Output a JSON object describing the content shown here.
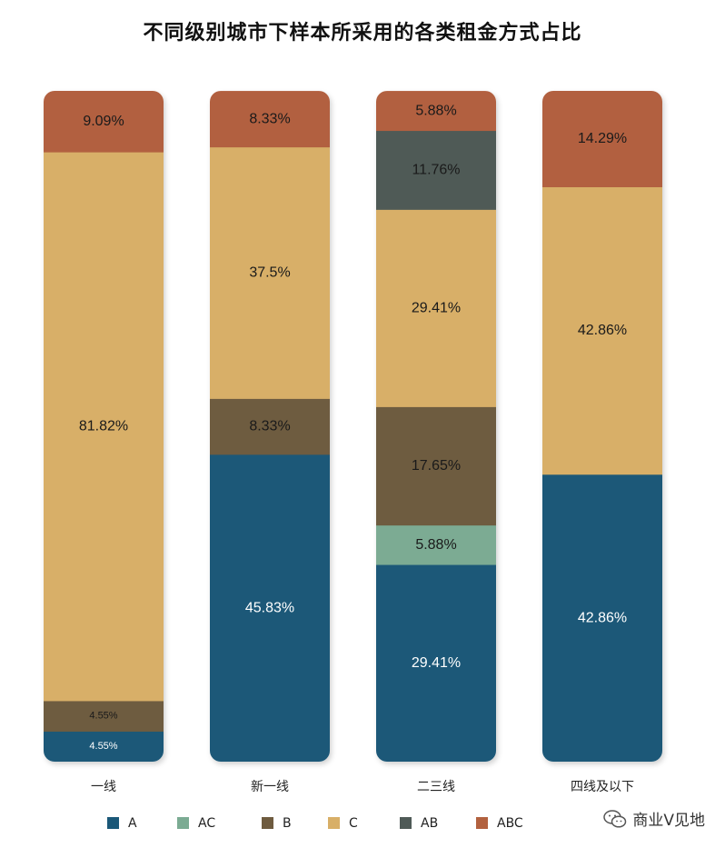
{
  "chart_data": {
    "type": "bar",
    "stacked": true,
    "percent": true,
    "title": "不同级别城市下样本所采用的各类租金方式占比",
    "categories": [
      "一线",
      "新一线",
      "二三线",
      "四线及以下"
    ],
    "series": [
      {
        "name": "A",
        "color": "#1b5878",
        "text_color": "#ffffff",
        "values": [
          4.55,
          45.83,
          29.41,
          42.86
        ],
        "labels": [
          "4.55%",
          "45.83%",
          "29.41%",
          "42.86%"
        ]
      },
      {
        "name": "AC",
        "color": "#7bab93",
        "text_color": "#1a1a1a",
        "values": [
          0,
          0,
          5.88,
          0
        ],
        "labels": [
          "",
          "",
          "5.88%",
          ""
        ]
      },
      {
        "name": "B",
        "color": "#6e5b3f",
        "text_color": "#1a1a1a",
        "values": [
          4.55,
          8.33,
          17.65,
          0
        ],
        "labels": [
          "4.55%",
          "8.33%",
          "17.65%",
          ""
        ]
      },
      {
        "name": "C",
        "color": "#d8af67",
        "text_color": "#1a1a1a",
        "values": [
          81.82,
          37.5,
          29.41,
          42.86
        ],
        "labels": [
          "81.82%",
          "37.5%",
          "29.41%",
          "42.86%"
        ]
      },
      {
        "name": "AB",
        "color": "#4f5a57",
        "text_color": "#1a1a1a",
        "values": [
          0,
          0,
          11.76,
          0
        ],
        "labels": [
          "",
          "",
          "11.76%",
          ""
        ]
      },
      {
        "name": "ABC",
        "color": "#b2613f",
        "text_color": "#1a1a1a",
        "values": [
          9.09,
          8.33,
          5.88,
          14.29
        ],
        "labels": [
          "9.09%",
          "8.33%",
          "5.88%",
          "14.29%"
        ]
      }
    ],
    "ylim": [
      0,
      100
    ],
    "legend_position": "bottom",
    "grid": false
  },
  "watermark": {
    "text": "商业V见地",
    "icon": "wechat-icon"
  }
}
